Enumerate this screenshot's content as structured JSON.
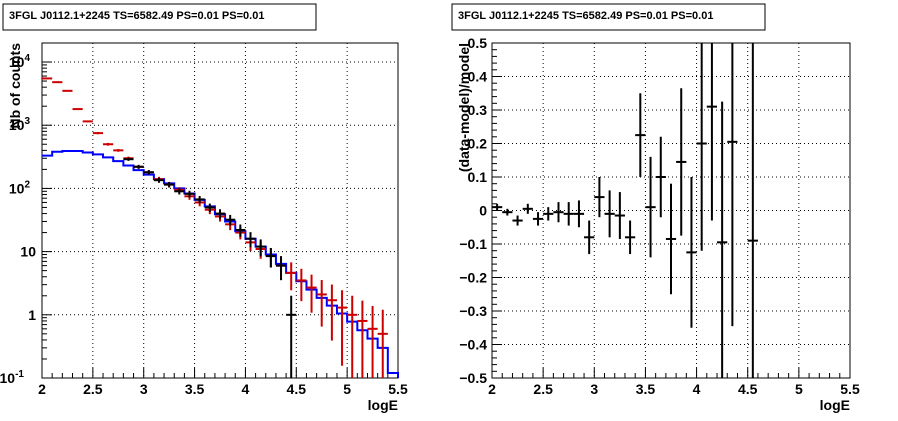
{
  "chart_data": [
    {
      "type": "histogram",
      "title": "3FGL J0112.1+2245 TS=6582.49 PS=0.01 PS=0.01",
      "xlabel": "logE",
      "ylabel": "Nb of counts",
      "xlim": [
        2,
        5.5
      ],
      "ylim": [
        0.1,
        20000
      ],
      "y_scale": "log",
      "grid": true,
      "x_ticks": [
        "2",
        "2.5",
        "3",
        "3.5",
        "4",
        "4.5",
        "5",
        "5.5"
      ],
      "y_ticks": [
        {
          "v": 0.1,
          "label": "10",
          "sup": "-1"
        },
        {
          "v": 1,
          "label": "1",
          "sup": ""
        },
        {
          "v": 10,
          "label": "10",
          "sup": ""
        },
        {
          "v": 100,
          "label": "10",
          "sup": "2"
        },
        {
          "v": 1000,
          "label": "10",
          "sup": "3"
        },
        {
          "v": 10000,
          "label": "10",
          "sup": "4"
        }
      ],
      "bins": [
        2.0,
        2.1,
        2.2,
        2.3,
        2.4,
        2.5,
        2.6,
        2.7,
        2.8,
        2.9,
        3.0,
        3.1,
        3.2,
        3.3,
        3.4,
        3.5,
        3.6,
        3.7,
        3.8,
        3.9,
        4.0,
        4.1,
        4.2,
        4.3,
        4.4,
        4.5,
        4.6,
        4.7,
        4.8,
        4.9,
        5.0,
        5.1,
        5.2,
        5.3,
        5.4,
        5.5
      ],
      "series": [
        {
          "color": "#cc0000",
          "style": "error-bars",
          "values": [
            5500,
            4800,
            3500,
            1800,
            1150,
            750,
            500,
            400,
            300,
            220,
            180,
            140,
            115,
            95,
            75,
            60,
            46,
            36,
            27,
            20,
            14,
            11,
            8.5,
            6,
            4.6,
            3.5,
            2.7,
            2.1,
            1.7,
            1.3,
            1.0,
            0.8,
            0.6,
            0.5,
            null
          ],
          "errors": [
            0.01,
            0.01,
            0.01,
            0.02,
            0.03,
            0.04,
            0.05,
            0.05,
            0.06,
            0.07,
            0.08,
            0.09,
            0.1,
            0.1,
            0.12,
            0.13,
            0.15,
            0.17,
            0.19,
            0.22,
            0.27,
            0.3,
            0.34,
            0.41,
            0.47,
            0.53,
            0.6,
            0.69,
            0.77,
            0.88,
            1.0,
            1.1,
            1.3,
            1.4,
            null
          ]
        },
        {
          "color": "#0000ff",
          "style": "step",
          "values": [
            330,
            380,
            390,
            390,
            370,
            345,
            310,
            270,
            230,
            195,
            165,
            140,
            120,
            100,
            83,
            66,
            52,
            39,
            30,
            21,
            16,
            12,
            9,
            6.4,
            4.6,
            3.4,
            2.5,
            1.85,
            1.4,
            1.05,
            0.78,
            0.57,
            0.42,
            0.3,
            0.12
          ]
        },
        {
          "color": "#000000",
          "style": "error-bars",
          "values": [
            null,
            null,
            null,
            null,
            null,
            null,
            null,
            null,
            290,
            220,
            180,
            135,
            115,
            90,
            82,
            67,
            50,
            40,
            32,
            22,
            16,
            12,
            8.5,
            6,
            1,
            null,
            null,
            null,
            null,
            null,
            null,
            null,
            null,
            null,
            null
          ],
          "errors": [
            null,
            null,
            null,
            null,
            null,
            null,
            null,
            null,
            0.06,
            0.07,
            0.08,
            0.09,
            0.1,
            0.11,
            0.12,
            0.13,
            0.15,
            0.17,
            0.19,
            0.22,
            0.27,
            0.3,
            0.34,
            0.41,
            1.0,
            null,
            null,
            null,
            null,
            null,
            null,
            null,
            null,
            null,
            null
          ]
        }
      ]
    },
    {
      "type": "error-bars",
      "title": "3FGL J0112.1+2245 TS=6582.49 PS=0.01 PS=0.01",
      "xlabel": "logE",
      "ylabel": "(data-model)/model",
      "xlim": [
        2,
        5.5
      ],
      "ylim": [
        -0.5,
        0.5
      ],
      "grid": true,
      "x_ticks": [
        "2",
        "2.5",
        "3",
        "3.5",
        "4",
        "4.5",
        "5",
        "5.5"
      ],
      "y_ticks": [
        "−0.5",
        "−0.4",
        "−0.3",
        "−0.2",
        "−0.1",
        "0",
        "0.1",
        "0.2",
        "0.3",
        "0.4",
        "0.5"
      ],
      "points": [
        {
          "x": 2.05,
          "y": 0.01,
          "yerr": 0.01
        },
        {
          "x": 2.15,
          "y": -0.005,
          "yerr": 0.01
        },
        {
          "x": 2.25,
          "y": -0.03,
          "yerr": 0.015
        },
        {
          "x": 2.35,
          "y": 0.005,
          "yerr": 0.015
        },
        {
          "x": 2.45,
          "y": -0.025,
          "yerr": 0.02
        },
        {
          "x": 2.55,
          "y": -0.01,
          "yerr": 0.02
        },
        {
          "x": 2.65,
          "y": -0.005,
          "yerr": 0.03
        },
        {
          "x": 2.75,
          "y": -0.01,
          "yerr": 0.035
        },
        {
          "x": 2.85,
          "y": -0.01,
          "yerr": 0.04
        },
        {
          "x": 2.95,
          "y": -0.08,
          "yerr": 0.05
        },
        {
          "x": 3.05,
          "y": 0.04,
          "yerr": 0.06
        },
        {
          "x": 3.15,
          "y": -0.01,
          "yerr": 0.07
        },
        {
          "x": 3.25,
          "y": -0.015,
          "yerr": 0.07
        },
        {
          "x": 3.35,
          "y": -0.08,
          "yerr": 0.05
        },
        {
          "x": 3.45,
          "y": 0.225,
          "yerr": 0.125
        },
        {
          "x": 3.55,
          "y": 0.01,
          "yerr": 0.15
        },
        {
          "x": 3.65,
          "y": 0.1,
          "yerr": 0.12
        },
        {
          "x": 3.75,
          "y": -0.085,
          "yerr": 0.165
        },
        {
          "x": 3.85,
          "y": 0.145,
          "yerr": 0.22
        },
        {
          "x": 3.95,
          "y": -0.125,
          "yerr": 0.225
        },
        {
          "x": 4.05,
          "y": 0.2,
          "yerr": 0.32
        },
        {
          "x": 4.15,
          "y": 0.31,
          "yerr": 0.34
        },
        {
          "x": 4.25,
          "y": -0.095,
          "yerr": 0.42
        },
        {
          "x": 4.35,
          "y": 0.205,
          "yerr": 0.55
        },
        {
          "x": 4.55,
          "y": -0.09,
          "yerr": 0.65
        }
      ]
    }
  ]
}
